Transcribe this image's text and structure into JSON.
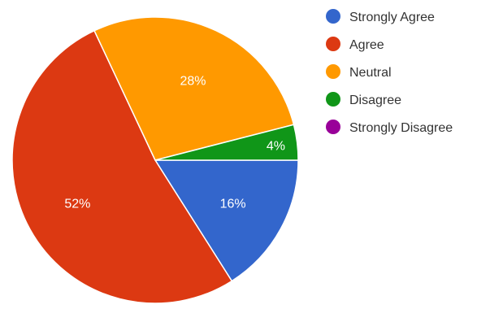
{
  "chart_data": {
    "type": "pie",
    "categories": [
      "Strongly Agree",
      "Agree",
      "Neutral",
      "Disagree",
      "Strongly Disagree"
    ],
    "values": [
      16,
      52,
      28,
      4,
      0
    ],
    "value_labels": [
      "16%",
      "52%",
      "28%",
      "4%",
      ""
    ],
    "colors": [
      "#3366cc",
      "#dc3912",
      "#ff9900",
      "#109618",
      "#990099"
    ],
    "legend_placement": "right"
  }
}
